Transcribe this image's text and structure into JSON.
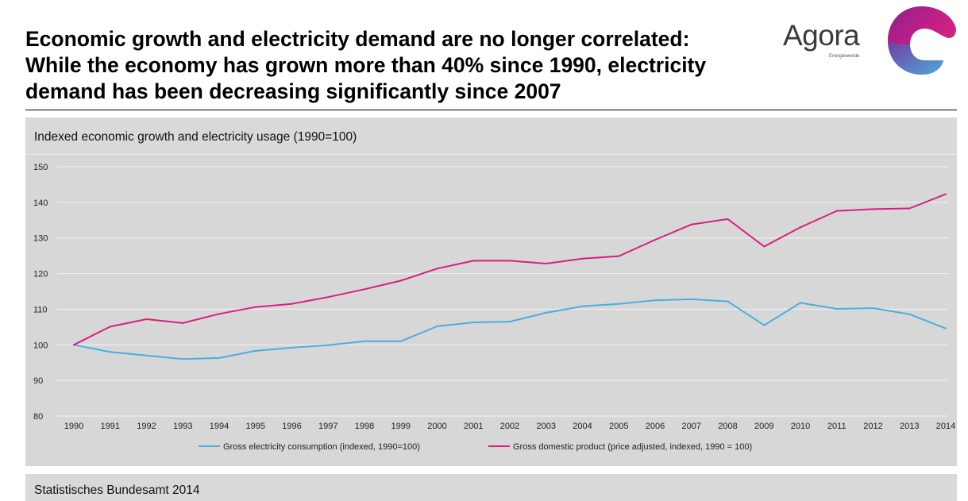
{
  "header": {
    "title_lines": [
      "Economic growth and electricity demand are no longer correlated:",
      "While the economy has grown more than 40% since 1990, electricity",
      "demand has been decreasing significantly since 2007"
    ]
  },
  "logo": {
    "wordmark": "Agora",
    "subtitle": "Energiewende"
  },
  "panel": {
    "title": "Indexed economic growth and electricity usage (1990=100)"
  },
  "source": {
    "text": "Statistisches Bundesamt 2014"
  },
  "colors": {
    "electricity": "#4aaee0",
    "gdp": "#d6207e",
    "grid": "#f4f4f4",
    "panel_bg": "#d9d9d9"
  },
  "chart_data": {
    "type": "line",
    "title": "Indexed economic growth and electricity usage (1990=100)",
    "xlabel": "",
    "ylabel": "",
    "categories": [
      "1990",
      "1991",
      "1992",
      "1993",
      "1994",
      "1995",
      "1996",
      "1997",
      "1998",
      "1999",
      "2000",
      "2001",
      "2002",
      "2003",
      "2004",
      "2005",
      "2006",
      "2007",
      "2008",
      "2009",
      "2010",
      "2011",
      "2012",
      "2013",
      "2014"
    ],
    "ylim": [
      80,
      150
    ],
    "yticks": [
      80,
      90,
      100,
      110,
      120,
      130,
      140,
      150
    ],
    "grid": true,
    "legend_position": "bottom",
    "series": [
      {
        "name": "Gross electricity consumption (indexed, 1990=100)",
        "color": "#4aaee0",
        "values": [
          100,
          98,
          97,
          96,
          96.3,
          98.3,
          99.2,
          99.9,
          101,
          101,
          105.2,
          106.3,
          106.5,
          109,
          110.8,
          111.5,
          112.5,
          112.8,
          112.2,
          105.5,
          111.8,
          110.1,
          110.3,
          108.6,
          104.6
        ]
      },
      {
        "name": "Gross domestic product (price adjusted, indexed, 1990 = 100)",
        "color": "#d6207e",
        "values": [
          100,
          105.1,
          107.2,
          106.1,
          108.7,
          110.6,
          111.5,
          113.4,
          115.6,
          118,
          121.4,
          123.6,
          123.6,
          122.8,
          124.2,
          124.9,
          129.5,
          133.8,
          135.3,
          127.6,
          133,
          137.6,
          138.1,
          138.3,
          142.3
        ]
      }
    ]
  }
}
